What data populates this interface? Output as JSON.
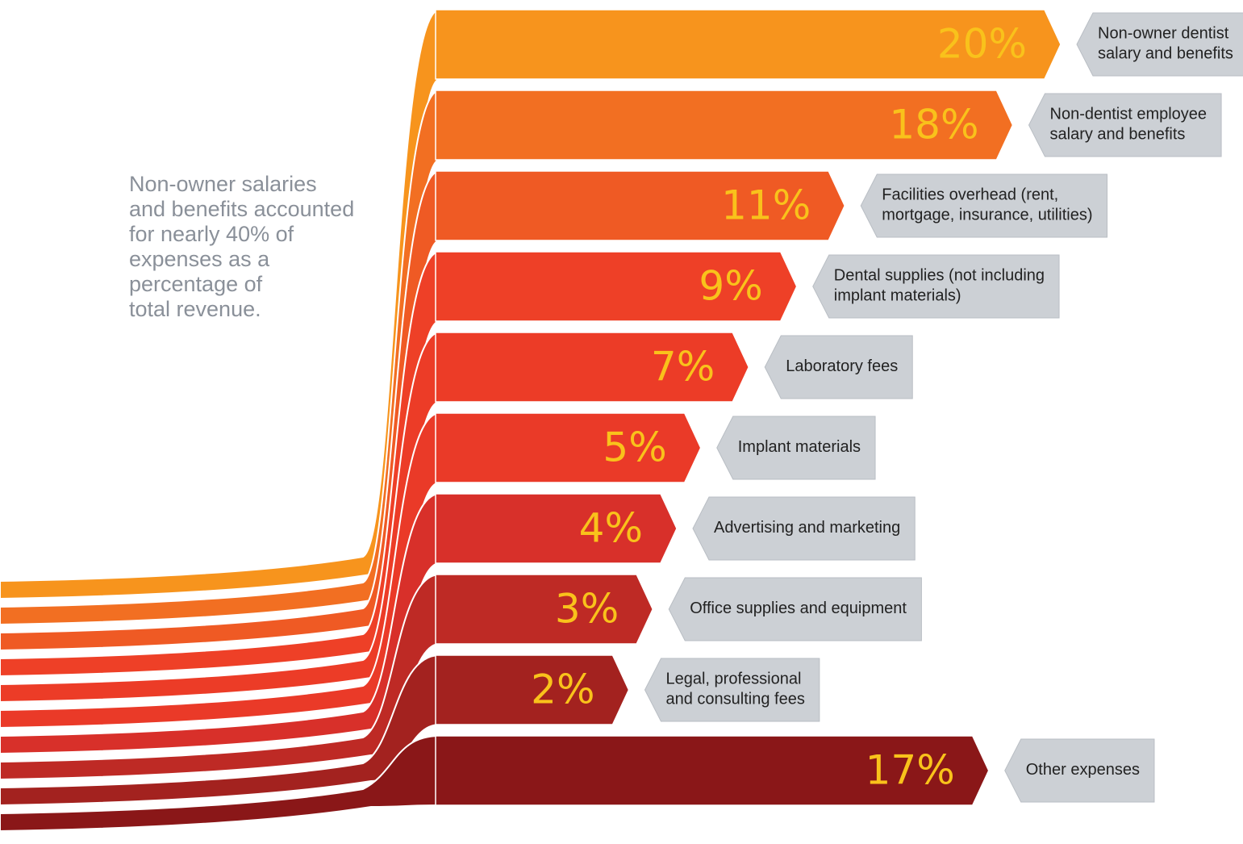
{
  "chart_data": {
    "type": "bar",
    "annotation": "Non-owner salaries\nand benefits accounted\nfor nearly 40% of\nexpenses as a\npercentage of\ntotal revenue.",
    "categories": [
      "Non-owner dentist\nsalary and benefits",
      "Non-dentist employee\nsalary and benefits",
      "Facilities overhead (rent,\nmortgage, insurance, utilities)",
      "Dental supplies (not including\nimplant materials)",
      "Laboratory fees",
      "Implant materials",
      "Advertising and marketing",
      "Office supplies and equipment",
      "Legal, professional\nand consulting fees",
      "Other expenses"
    ],
    "values": [
      20,
      18,
      11,
      9,
      7,
      5,
      4,
      3,
      2,
      17
    ],
    "value_labels": [
      "20%",
      "18%",
      "11%",
      "9%",
      "7%",
      "5%",
      "4%",
      "3%",
      "2%",
      "17%"
    ],
    "colors": [
      "#f7941d",
      "#f26f22",
      "#ef5a24",
      "#ee4027",
      "#ec3c27",
      "#ea3a28",
      "#d8302a",
      "#be2a25",
      "#a3221f",
      "#8a1718"
    ],
    "value_label_color": "#f9c21b",
    "label_box_color": "#ccd0d5"
  }
}
